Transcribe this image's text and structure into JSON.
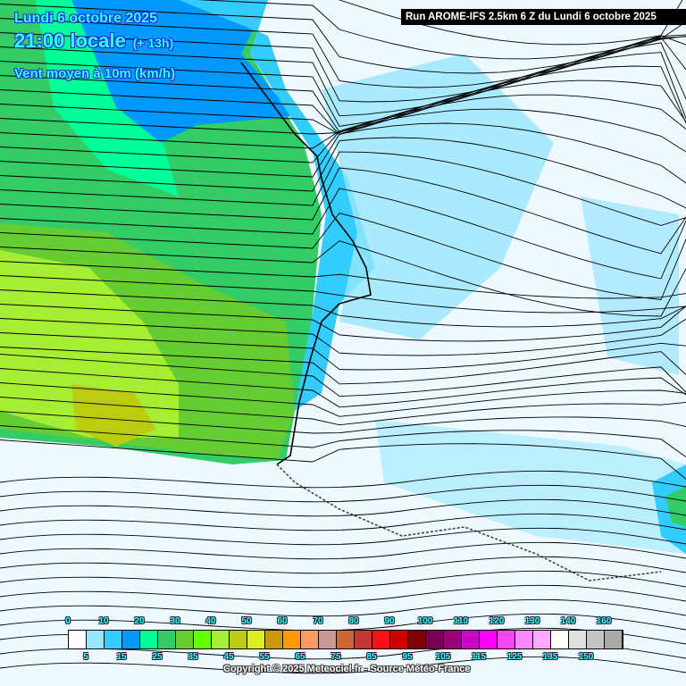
{
  "header": {
    "date": "Lundi 6 octobre 2025",
    "time": "21:00 locale",
    "offset": "(+ 13h)",
    "parameter": "Vent moyen à 10m (km/h)",
    "run": "Run AROME-IFS 2.5km 6 Z du Lundi 6 octobre 2025"
  },
  "legend": {
    "top_labels": [
      "0",
      "10",
      "20",
      "30",
      "40",
      "50",
      "60",
      "70",
      "80",
      "90",
      "100",
      "110",
      "120",
      "130",
      "140",
      "160"
    ],
    "bottom_labels": [
      "5",
      "15",
      "25",
      "35",
      "45",
      "55",
      "65",
      "75",
      "85",
      "95",
      "105",
      "115",
      "125",
      "135",
      "150"
    ],
    "colors": [
      "#ffffff",
      "#99e6ff",
      "#33ccff",
      "#0099ff",
      "#00ff99",
      "#33cc66",
      "#66cc33",
      "#66ff00",
      "#a6ee33",
      "#bbcc11",
      "#ddee22",
      "#cc9900",
      "#ff9900",
      "#ff9966",
      "#cc9999",
      "#cc6633",
      "#cc3333",
      "#ff1111",
      "#cc0000",
      "#800000",
      "#770055",
      "#990077",
      "#cc00cc",
      "#ff00ff",
      "#ff44ff",
      "#ff88ff",
      "#ffaaff",
      "#ffffff",
      "#e0e0e0",
      "#c4c4c4",
      "#aaaaaa"
    ]
  },
  "copyright": "Copyright © 2025 Meteociel.fr - Source Météo-France"
}
